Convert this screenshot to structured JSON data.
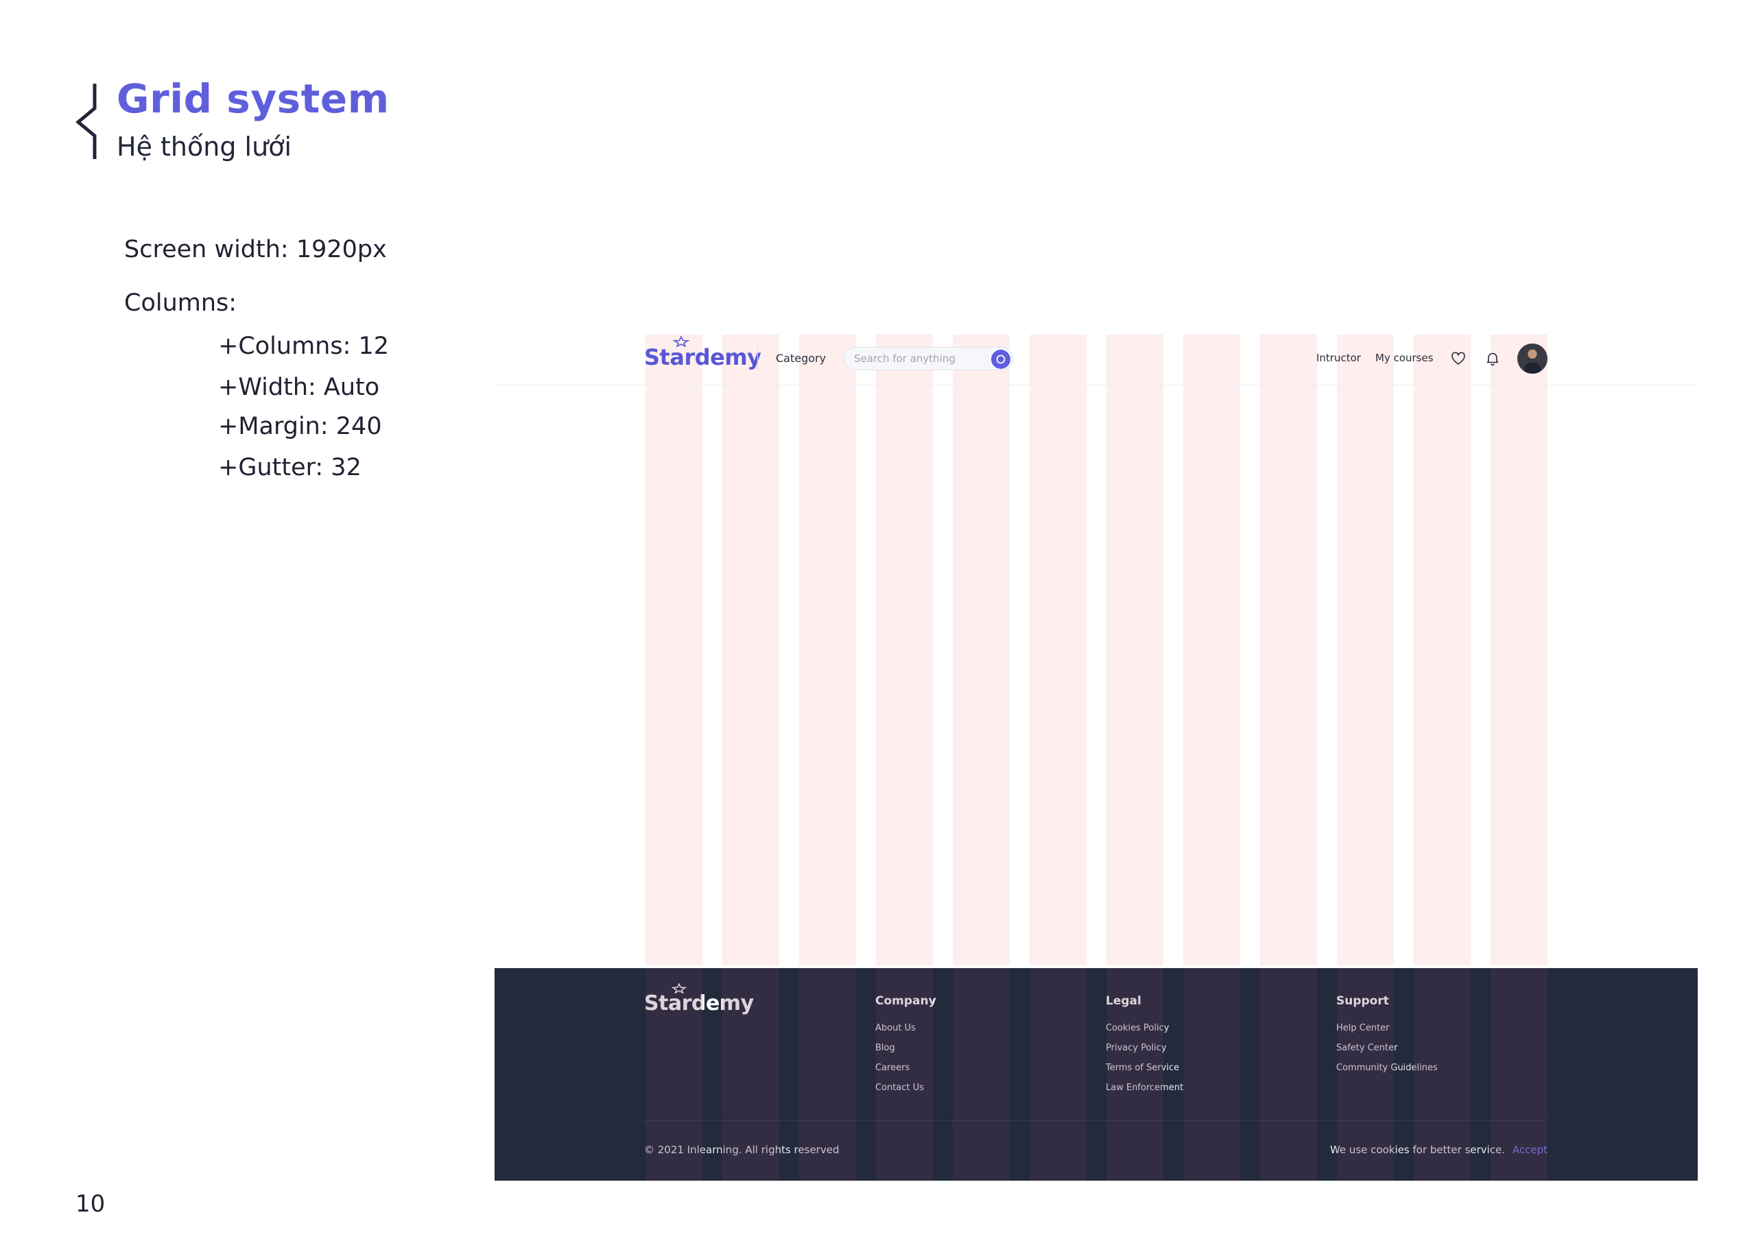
{
  "doc": {
    "title": "Grid system",
    "subtitle": "Hệ thống lưới",
    "screen_width": "Screen width: 1920px",
    "columns_heading": "Columns:",
    "columns_count": "+Columns: 12",
    "width": "+Width: Auto",
    "margin": "+Margin: 240",
    "gutter": "+Gutter: 32",
    "page_number": "10"
  },
  "grid": {
    "columns": 12
  },
  "colors": {
    "accent": "#5f5fdc",
    "column_overlay": "#fde8e8",
    "footer_bg": "#222a3c",
    "accept_link": "#7a7af0"
  },
  "header": {
    "logo": "Stardemy",
    "category": "Category",
    "search_placeholder": "Search for anything",
    "instructor": "Intructor",
    "my_courses": "My courses",
    "icons": [
      "search-icon",
      "heart-icon",
      "bell-icon",
      "avatar"
    ]
  },
  "footer": {
    "logo": "Stardemy",
    "columns": [
      {
        "heading": "Company",
        "items": [
          "About Us",
          "Blog",
          "Careers",
          "Contact Us"
        ]
      },
      {
        "heading": "Legal",
        "items": [
          "Cookies Policy",
          "Privacy Policy",
          "Terms of Service",
          "Law Enforcement"
        ]
      },
      {
        "heading": "Support",
        "items": [
          "Help Center",
          "Safety Center",
          "Community Guidelines"
        ]
      }
    ],
    "copyright": "© 2021 Inlearning. All rights reserved",
    "cookie_text": "We use cookies for better service.",
    "accept": "Accept"
  }
}
